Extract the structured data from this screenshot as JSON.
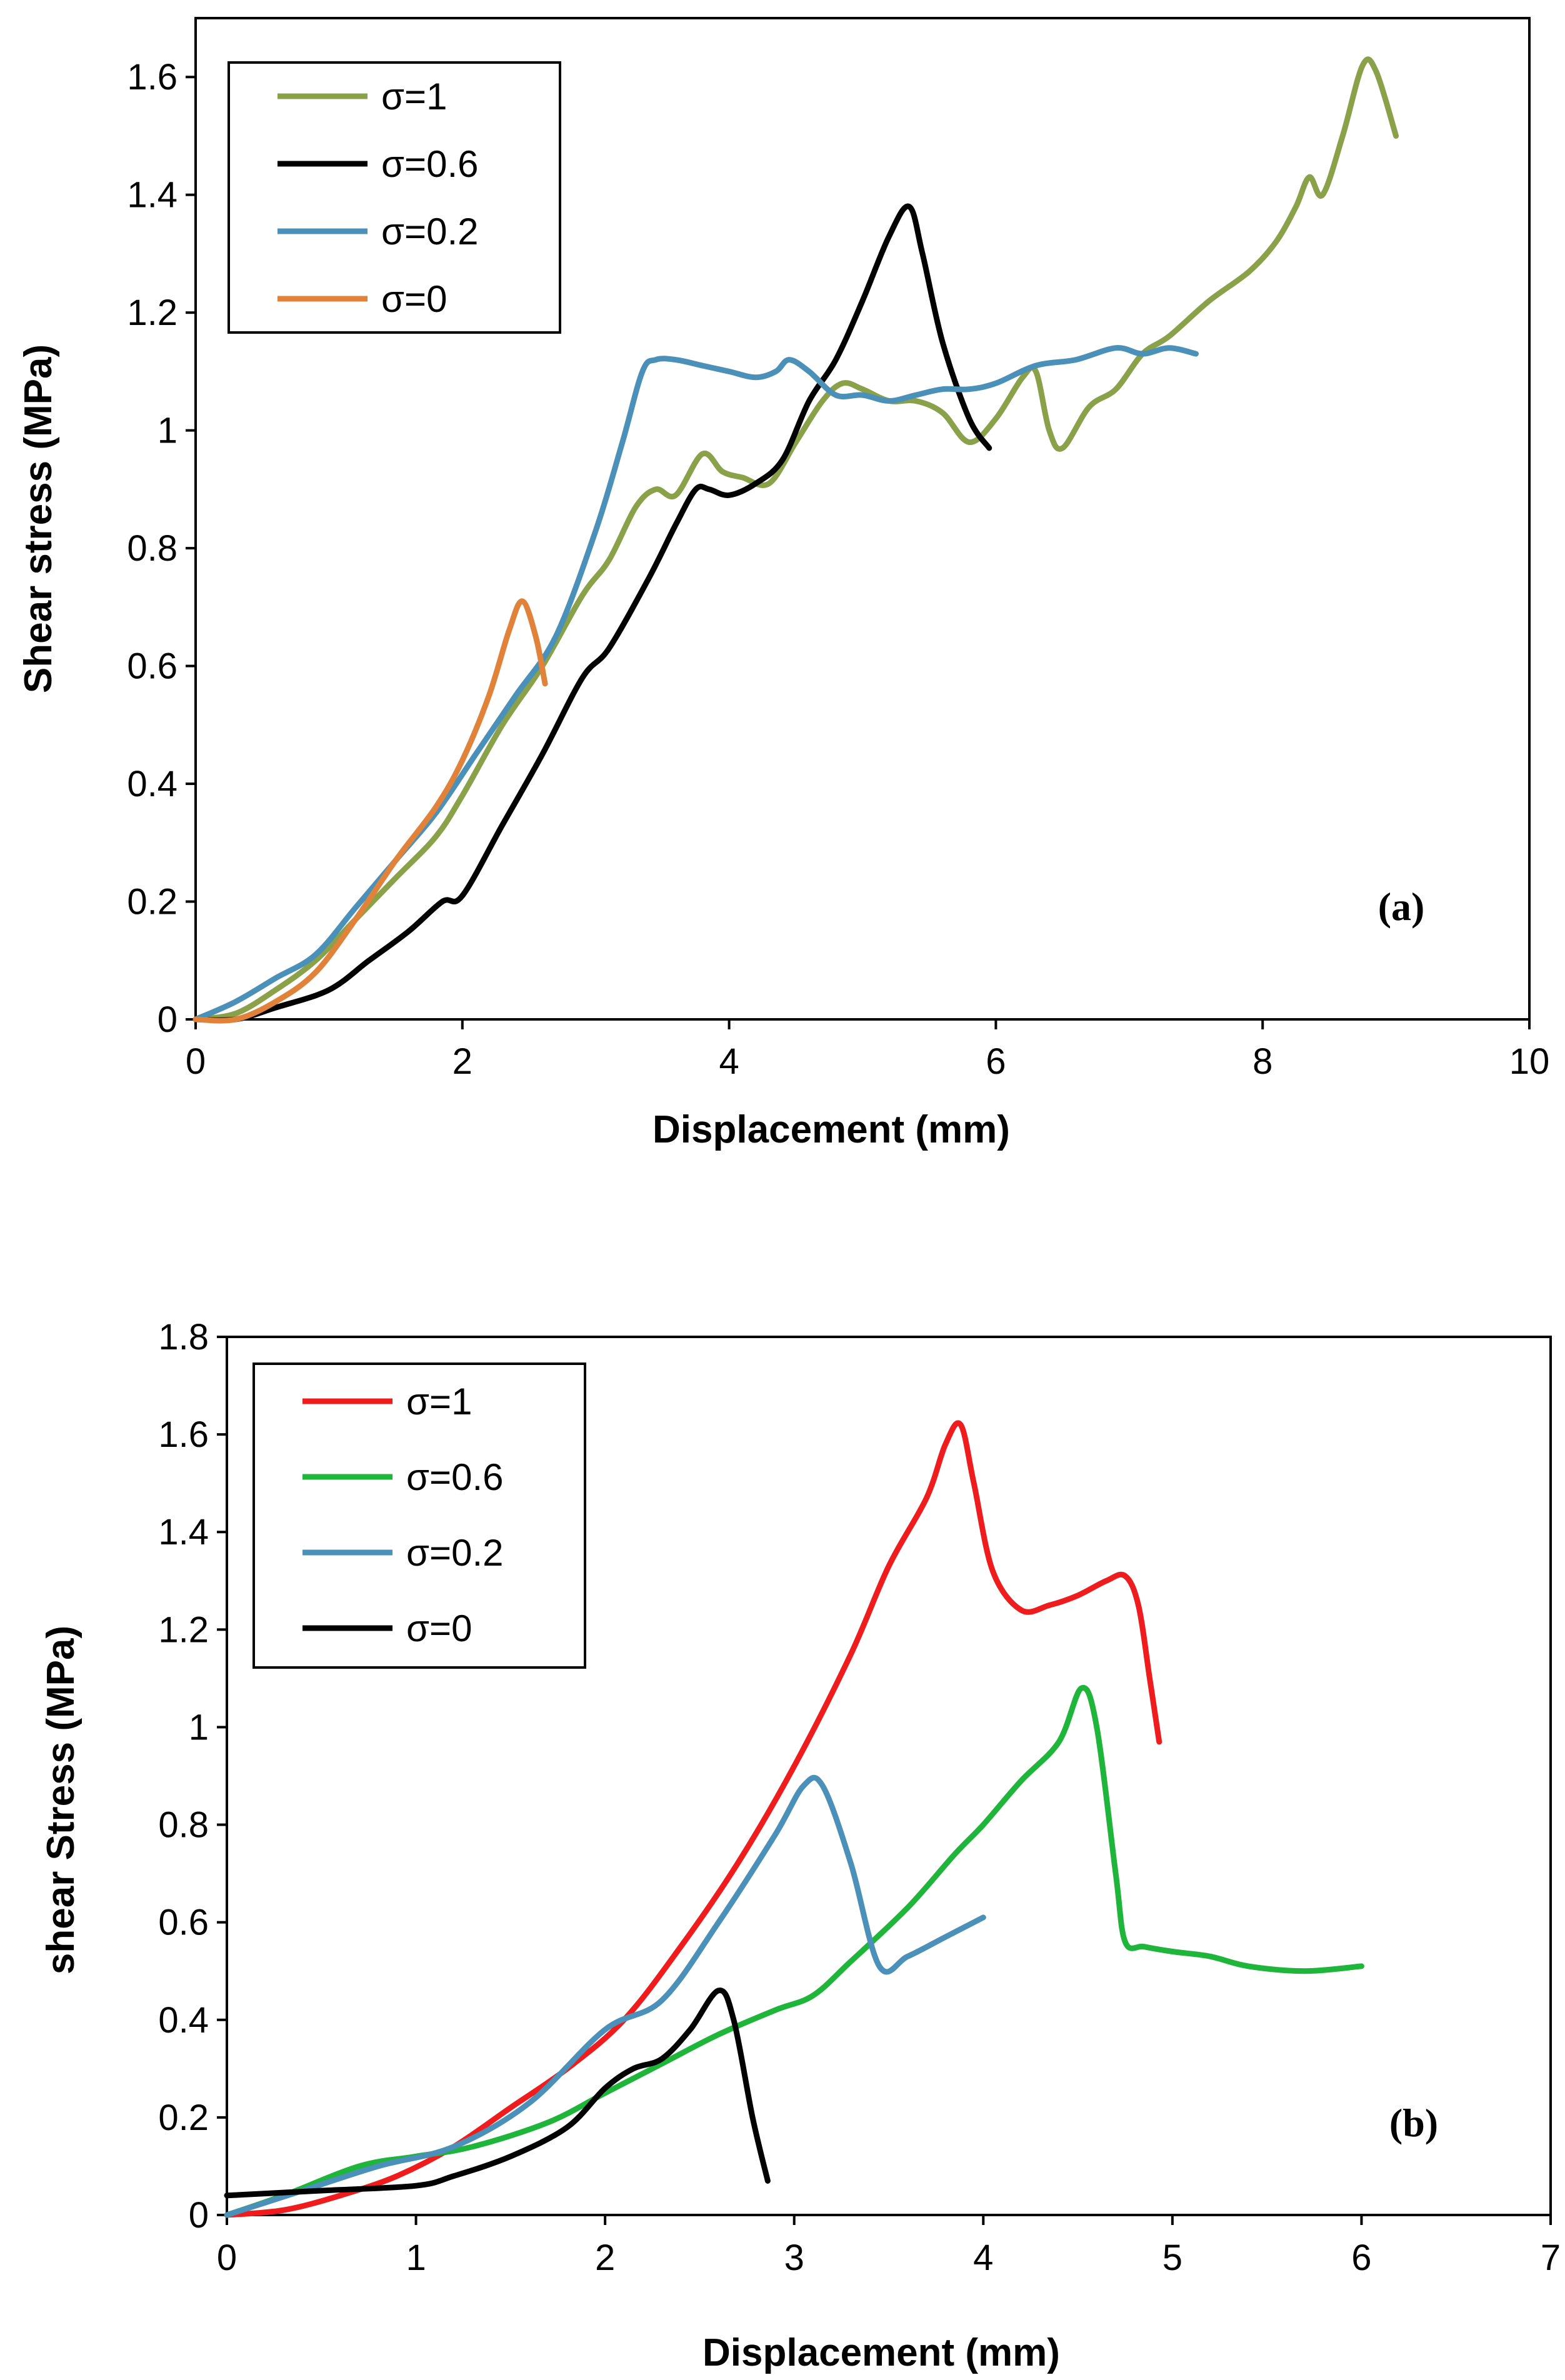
{
  "chart_data": [
    {
      "type": "line",
      "panel_label": "(a)",
      "xlabel": "Displacement (mm)",
      "ylabel": "Shear stress (MPa)",
      "xlim": [
        0,
        10
      ],
      "ylim": [
        0,
        1.7
      ],
      "xticks": [
        0,
        2,
        4,
        6,
        8,
        10
      ],
      "xtick_labels": [
        "0",
        "2",
        "4",
        "6",
        "8",
        "10"
      ],
      "yticks": [
        0,
        0.2,
        0.4,
        0.6,
        0.8,
        1.0,
        1.2,
        1.4,
        1.6
      ],
      "ytick_labels": [
        "0",
        "0.2",
        "0.4",
        "0.6",
        "0.8",
        "1",
        "1.2",
        "1.4",
        "1.6"
      ],
      "grid": false,
      "legend_position": "top-left",
      "series": [
        {
          "name": "σ=1",
          "color": "#8aa14a",
          "x": [
            0,
            0.3,
            0.6,
            0.9,
            1.2,
            1.5,
            1.8,
            2.0,
            2.3,
            2.6,
            2.9,
            3.1,
            3.3,
            3.45,
            3.6,
            3.8,
            3.95,
            4.1,
            4.3,
            4.5,
            4.7,
            4.85,
            5.0,
            5.2,
            5.4,
            5.6,
            5.8,
            6.0,
            6.2,
            6.3,
            6.4,
            6.5,
            6.7,
            6.9,
            7.1,
            7.3,
            7.6,
            7.9,
            8.1,
            8.25,
            8.35,
            8.45,
            8.6,
            8.75,
            8.85,
            9.0
          ],
          "values": [
            0,
            0.01,
            0.05,
            0.1,
            0.17,
            0.24,
            0.31,
            0.38,
            0.5,
            0.6,
            0.72,
            0.78,
            0.87,
            0.9,
            0.89,
            0.96,
            0.93,
            0.92,
            0.91,
            0.98,
            1.05,
            1.08,
            1.07,
            1.05,
            1.05,
            1.03,
            0.98,
            1.02,
            1.09,
            1.1,
            1.0,
            0.97,
            1.04,
            1.07,
            1.13,
            1.16,
            1.22,
            1.27,
            1.32,
            1.38,
            1.43,
            1.4,
            1.5,
            1.62,
            1.61,
            1.5
          ]
        },
        {
          "name": "σ=0.6",
          "color": "#000000",
          "x": [
            0,
            0.3,
            0.6,
            1.0,
            1.3,
            1.6,
            1.85,
            2.0,
            2.3,
            2.6,
            2.9,
            3.1,
            3.4,
            3.6,
            3.75,
            3.85,
            4.0,
            4.2,
            4.4,
            4.6,
            4.8,
            5.0,
            5.2,
            5.35,
            5.45,
            5.6,
            5.8,
            5.95
          ],
          "values": [
            0,
            0.0,
            0.02,
            0.05,
            0.1,
            0.15,
            0.2,
            0.21,
            0.33,
            0.45,
            0.58,
            0.63,
            0.75,
            0.84,
            0.9,
            0.9,
            0.89,
            0.91,
            0.95,
            1.05,
            1.12,
            1.22,
            1.33,
            1.38,
            1.3,
            1.15,
            1.02,
            0.97
          ]
        },
        {
          "name": "σ=0.2",
          "color": "#4a90b8",
          "x": [
            0,
            0.3,
            0.6,
            0.9,
            1.2,
            1.5,
            1.8,
            2.1,
            2.4,
            2.7,
            3.0,
            3.2,
            3.35,
            3.45,
            3.6,
            3.8,
            4.0,
            4.2,
            4.35,
            4.45,
            4.6,
            4.8,
            5.0,
            5.2,
            5.4,
            5.6,
            5.8,
            6.0,
            6.3,
            6.6,
            6.9,
            7.1,
            7.3,
            7.5
          ],
          "values": [
            0,
            0.03,
            0.07,
            0.11,
            0.19,
            0.27,
            0.35,
            0.45,
            0.55,
            0.65,
            0.83,
            0.98,
            1.1,
            1.12,
            1.12,
            1.11,
            1.1,
            1.09,
            1.1,
            1.12,
            1.1,
            1.06,
            1.06,
            1.05,
            1.06,
            1.07,
            1.07,
            1.08,
            1.11,
            1.12,
            1.14,
            1.13,
            1.14,
            1.13
          ]
        },
        {
          "name": "σ=0",
          "color": "#e0823a",
          "x": [
            0,
            0.3,
            0.6,
            0.9,
            1.2,
            1.5,
            1.8,
            2.0,
            2.2,
            2.35,
            2.45,
            2.55,
            2.62
          ],
          "values": [
            0,
            0.0,
            0.03,
            0.08,
            0.17,
            0.27,
            0.36,
            0.44,
            0.55,
            0.66,
            0.71,
            0.65,
            0.57
          ]
        }
      ]
    },
    {
      "type": "line",
      "panel_label": "(b)",
      "xlabel": "Displacement (mm)",
      "ylabel": "shear Stress (MPa)",
      "xlim": [
        0,
        7
      ],
      "ylim": [
        0,
        1.8
      ],
      "xticks": [
        0,
        1,
        2,
        3,
        4,
        5,
        6,
        7
      ],
      "xtick_labels": [
        "0",
        "1",
        "2",
        "3",
        "4",
        "5",
        "6",
        "7"
      ],
      "yticks": [
        0,
        0.2,
        0.4,
        0.6,
        0.8,
        1.0,
        1.2,
        1.4,
        1.6,
        1.8
      ],
      "ytick_labels": [
        "0",
        "0.2",
        "0.4",
        "0.6",
        "0.8",
        "1",
        "1.2",
        "1.4",
        "1.6",
        "1.8"
      ],
      "grid": false,
      "legend_position": "top-left",
      "series": [
        {
          "name": "σ=1",
          "color": "#ee1c1c",
          "x": [
            0,
            0.3,
            0.6,
            0.9,
            1.2,
            1.5,
            1.8,
            2.1,
            2.4,
            2.7,
            3.0,
            3.3,
            3.5,
            3.7,
            3.8,
            3.88,
            3.95,
            4.05,
            4.2,
            4.35,
            4.5,
            4.65,
            4.75,
            4.82,
            4.88,
            4.93
          ],
          "values": [
            0,
            0.01,
            0.04,
            0.08,
            0.14,
            0.22,
            0.3,
            0.4,
            0.55,
            0.72,
            0.92,
            1.15,
            1.33,
            1.47,
            1.58,
            1.62,
            1.5,
            1.32,
            1.24,
            1.25,
            1.27,
            1.3,
            1.31,
            1.25,
            1.1,
            0.97
          ]
        },
        {
          "name": "σ=0.6",
          "color": "#1eb53a",
          "x": [
            0,
            0.3,
            0.7,
            1.0,
            1.3,
            1.7,
            2.0,
            2.3,
            2.6,
            2.9,
            3.1,
            3.3,
            3.6,
            3.85,
            4.0,
            4.2,
            4.4,
            4.52,
            4.6,
            4.7,
            4.75,
            4.85,
            5.0,
            5.2,
            5.4,
            5.7,
            6.0
          ],
          "values": [
            0,
            0.04,
            0.1,
            0.12,
            0.14,
            0.19,
            0.25,
            0.31,
            0.37,
            0.42,
            0.45,
            0.52,
            0.63,
            0.74,
            0.8,
            0.89,
            0.97,
            1.08,
            1.0,
            0.7,
            0.56,
            0.55,
            0.54,
            0.53,
            0.51,
            0.5,
            0.51
          ]
        },
        {
          "name": "σ=0.2",
          "color": "#4a90b8",
          "x": [
            0,
            0.4,
            0.8,
            1.2,
            1.6,
            2.0,
            2.3,
            2.6,
            2.9,
            3.05,
            3.15,
            3.3,
            3.45,
            3.6,
            3.8,
            4.0
          ],
          "values": [
            0,
            0.05,
            0.1,
            0.14,
            0.23,
            0.38,
            0.44,
            0.6,
            0.78,
            0.88,
            0.88,
            0.72,
            0.51,
            0.53,
            0.57,
            0.61
          ]
        },
        {
          "name": "σ=0",
          "color": "#000000",
          "x": [
            0,
            0.5,
            1.0,
            1.2,
            1.5,
            1.8,
            2.0,
            2.15,
            2.3,
            2.45,
            2.6,
            2.68,
            2.78,
            2.86
          ],
          "values": [
            0.04,
            0.05,
            0.06,
            0.08,
            0.12,
            0.18,
            0.26,
            0.3,
            0.32,
            0.38,
            0.46,
            0.4,
            0.2,
            0.07
          ]
        }
      ]
    }
  ]
}
